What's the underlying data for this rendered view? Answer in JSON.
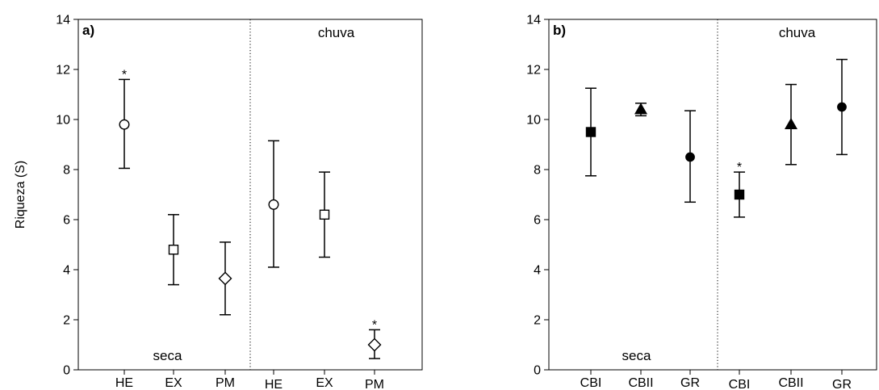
{
  "chart_data": [
    {
      "type": "scatter",
      "panel_label": "a)",
      "ylabel": "Riqueza (S)",
      "xlabel": "",
      "ylim": [
        0,
        14
      ],
      "yticks": [
        0,
        2,
        4,
        6,
        8,
        10,
        12,
        14
      ],
      "categories": [
        "HE",
        "EX",
        "PM",
        "HE",
        "EX",
        "PM"
      ],
      "groups": [
        {
          "label": "seca",
          "label_position": "bottom"
        },
        {
          "label": "chuva",
          "label_position": "top"
        }
      ],
      "points": [
        {
          "category": "HE",
          "group": "seca",
          "y": 9.8,
          "lower": 8.05,
          "upper": 11.6,
          "marker": "circle-open",
          "significant": true
        },
        {
          "category": "EX",
          "group": "seca",
          "y": 4.8,
          "lower": 3.4,
          "upper": 6.2,
          "marker": "square-open",
          "significant": false
        },
        {
          "category": "PM",
          "group": "seca",
          "y": 3.65,
          "lower": 2.2,
          "upper": 5.1,
          "marker": "diamond-open",
          "significant": false
        },
        {
          "category": "HE",
          "group": "chuva",
          "y": 6.6,
          "lower": 4.1,
          "upper": 9.15,
          "marker": "circle-open",
          "significant": false
        },
        {
          "category": "EX",
          "group": "chuva",
          "y": 6.2,
          "lower": 4.5,
          "upper": 7.9,
          "marker": "square-open",
          "significant": false
        },
        {
          "category": "PM",
          "group": "chuva",
          "y": 1.0,
          "lower": 0.45,
          "upper": 1.6,
          "marker": "diamond-open",
          "significant": true
        }
      ],
      "significance_mark": "*",
      "grid": false,
      "group_separator": "dotted"
    },
    {
      "type": "scatter",
      "panel_label": "b)",
      "ylabel": "",
      "xlabel": "",
      "ylim": [
        0,
        14
      ],
      "yticks": [
        0,
        2,
        4,
        6,
        8,
        10,
        12,
        14
      ],
      "categories": [
        "CBI",
        "CBII",
        "GR",
        "CBI",
        "CBII",
        "GR"
      ],
      "groups": [
        {
          "label": "seca",
          "label_position": "bottom"
        },
        {
          "label": "chuva",
          "label_position": "top"
        }
      ],
      "points": [
        {
          "category": "CBI",
          "group": "seca",
          "y": 9.5,
          "lower": 7.75,
          "upper": 11.25,
          "marker": "square-filled",
          "significant": false
        },
        {
          "category": "CBII",
          "group": "seca",
          "y": 10.4,
          "lower": 10.15,
          "upper": 10.65,
          "marker": "triangle-filled",
          "significant": false
        },
        {
          "category": "GR",
          "group": "seca",
          "y": 8.5,
          "lower": 6.7,
          "upper": 10.35,
          "marker": "circle-filled",
          "significant": false
        },
        {
          "category": "CBI",
          "group": "chuva",
          "y": 7.0,
          "lower": 6.1,
          "upper": 7.9,
          "marker": "square-filled",
          "significant": true
        },
        {
          "category": "CBII",
          "group": "chuva",
          "y": 9.8,
          "lower": 8.2,
          "upper": 11.4,
          "marker": "triangle-filled",
          "significant": false
        },
        {
          "category": "GR",
          "group": "chuva",
          "y": 10.5,
          "lower": 8.6,
          "upper": 12.4,
          "marker": "circle-filled",
          "significant": false
        }
      ],
      "significance_mark": "*",
      "grid": false,
      "group_separator": "dotted"
    }
  ]
}
